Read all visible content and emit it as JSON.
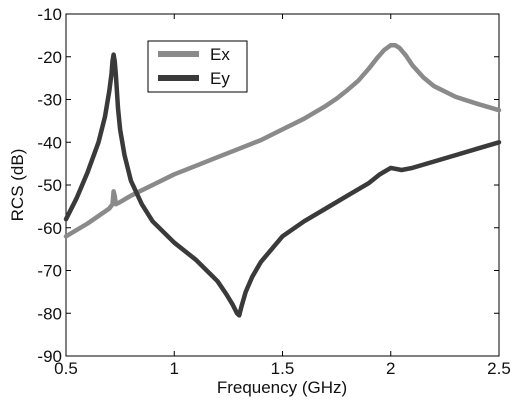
{
  "chart_data": {
    "type": "line",
    "xlabel": "Frequency (GHz)",
    "ylabel": "RCS (dB)",
    "xlim": [
      0.5,
      2.5
    ],
    "ylim": [
      -90,
      -10
    ],
    "xticks": [
      0.5,
      1,
      1.5,
      2,
      2.5
    ],
    "xtick_labels": [
      "0.5",
      "1",
      "1.5",
      "2",
      "2.5"
    ],
    "yticks": [
      -90,
      -80,
      -70,
      -60,
      -50,
      -40,
      -30,
      -20,
      -10
    ],
    "ytick_labels": [
      "-90",
      "-80",
      "-70",
      "-60",
      "-50",
      "-40",
      "-30",
      "-20",
      "-10"
    ],
    "grid": false,
    "legend_position": "top-left",
    "series": [
      {
        "name": "Ex",
        "color": "#8a8a8a",
        "x": [
          0.5,
          0.6,
          0.7,
          0.715,
          0.72,
          0.725,
          0.73,
          0.75,
          0.8,
          0.9,
          1.0,
          1.1,
          1.2,
          1.3,
          1.4,
          1.5,
          1.6,
          1.7,
          1.75,
          1.8,
          1.85,
          1.9,
          1.94,
          1.97,
          2.0,
          2.02,
          2.04,
          2.07,
          2.1,
          2.15,
          2.2,
          2.3,
          2.4,
          2.5
        ],
        "y": [
          -62,
          -59,
          -55.5,
          -54.5,
          -51.5,
          -52.5,
          -54.5,
          -54,
          -52.5,
          -50,
          -47.5,
          -45.5,
          -43.5,
          -41.5,
          -39.5,
          -37,
          -34.5,
          -31.5,
          -29.8,
          -27.8,
          -25.6,
          -22.7,
          -20.1,
          -18.4,
          -17.3,
          -17.3,
          -17.9,
          -19.7,
          -22,
          -24.8,
          -26.9,
          -29.4,
          -31,
          -32.5
        ]
      },
      {
        "name": "Ey",
        "color": "#3a3a3a",
        "x": [
          0.5,
          0.55,
          0.6,
          0.65,
          0.68,
          0.7,
          0.71,
          0.715,
          0.72,
          0.725,
          0.73,
          0.735,
          0.74,
          0.75,
          0.77,
          0.8,
          0.85,
          0.9,
          1.0,
          1.1,
          1.15,
          1.2,
          1.24,
          1.27,
          1.29,
          1.3,
          1.31,
          1.33,
          1.36,
          1.4,
          1.5,
          1.6,
          1.7,
          1.8,
          1.9,
          1.95,
          2.0,
          2.05,
          2.1,
          2.2,
          2.3,
          2.4,
          2.5
        ],
        "y": [
          -58,
          -53,
          -47,
          -40,
          -34,
          -28,
          -24,
          -21,
          -19.5,
          -21,
          -24,
          -28,
          -32,
          -37,
          -43,
          -49,
          -54.5,
          -58.5,
          -63.5,
          -67.5,
          -70,
          -72.5,
          -75.5,
          -78,
          -80,
          -80.5,
          -78.5,
          -75,
          -71.5,
          -68,
          -62,
          -58.5,
          -55.5,
          -52.5,
          -49.5,
          -47.5,
          -46,
          -46.5,
          -46,
          -44.5,
          -43,
          -41.5,
          -40
        ]
      }
    ]
  }
}
